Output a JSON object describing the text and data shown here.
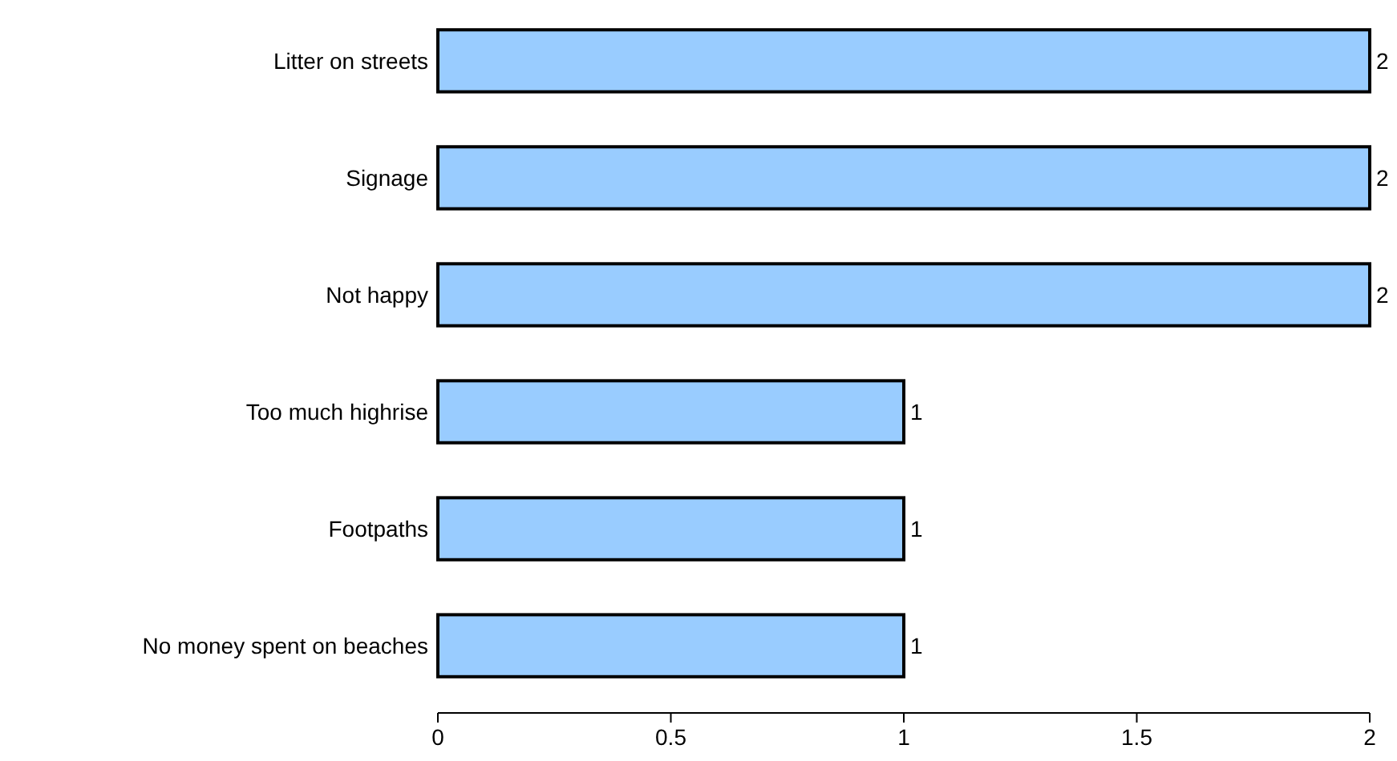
{
  "chart_data": {
    "type": "bar",
    "orientation": "horizontal",
    "categories": [
      "Litter on streets",
      "Signage",
      "Not happy",
      "Too much highrise",
      "Footpaths",
      "No money spent on beaches"
    ],
    "values": [
      2,
      2,
      2,
      1,
      1,
      1
    ],
    "color": "#99ccff",
    "xlim": [
      0,
      2
    ],
    "xticks": [
      0,
      0.5,
      1,
      1.5,
      2
    ],
    "grid": false,
    "data_labels": true
  }
}
